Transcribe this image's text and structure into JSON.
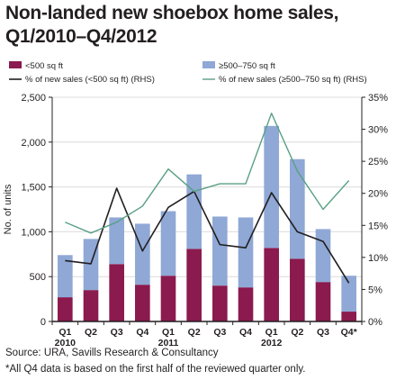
{
  "title_line1": "Non-landed new shoebox home sales,",
  "title_line2": "Q1/2010–Q4/2012",
  "source": "Source: URA, Savills Research & Consultancy",
  "note": "*All Q4 data is based on the first half of the reviewed quarter only.",
  "chart_data": {
    "type": "bar",
    "stacked": true,
    "categories": [
      "Q1",
      "Q2",
      "Q3",
      "Q4",
      "Q1",
      "Q2",
      "Q3",
      "Q4",
      "Q1",
      "Q2",
      "Q3",
      "Q4*"
    ],
    "year_labels": [
      {
        "index": 0,
        "label": "2010"
      },
      {
        "index": 4,
        "label": "2011"
      },
      {
        "index": 8,
        "label": "2012"
      }
    ],
    "ylabel": "No. of units",
    "ylim": [
      0,
      2500
    ],
    "yticks": [
      0,
      500,
      1000,
      1500,
      2000,
      2500
    ],
    "ytick_labels": [
      "0",
      "500",
      "1,000",
      "1,500",
      "2,000",
      "2,500"
    ],
    "y2lim": [
      0,
      35
    ],
    "y2ticks": [
      0,
      5,
      10,
      15,
      20,
      25,
      30,
      35
    ],
    "y2tick_labels": [
      "0%",
      "5%",
      "10%",
      "15%",
      "20%",
      "25%",
      "30%",
      "35%"
    ],
    "legend_position": "top",
    "series": [
      {
        "name": "<500 sq ft",
        "kind": "bar",
        "axis": "left",
        "color": "#8b1a4e",
        "values": [
          270,
          350,
          640,
          410,
          510,
          810,
          400,
          380,
          820,
          700,
          440,
          110
        ]
      },
      {
        "name": "≥500–750 sq ft",
        "kind": "bar",
        "axis": "left",
        "color": "#8fa8d6",
        "values": [
          470,
          570,
          520,
          680,
          720,
          830,
          770,
          780,
          1360,
          1110,
          590,
          400
        ]
      },
      {
        "name": "% of new sales (<500 sq ft) (RHS)",
        "kind": "line",
        "axis": "right",
        "color": "#231f20",
        "values": [
          9.5,
          9.0,
          20.8,
          11.0,
          17.8,
          20.3,
          12.0,
          11.5,
          20.1,
          14.0,
          12.5,
          6.0
        ]
      },
      {
        "name": "% of new sales (≥500–750 sq ft) (RHS)",
        "kind": "line",
        "axis": "right",
        "color": "#5aa084",
        "values": [
          15.5,
          13.8,
          15.5,
          18.0,
          23.8,
          20.3,
          21.5,
          21.5,
          32.5,
          23.5,
          17.5,
          22.0
        ]
      }
    ]
  }
}
